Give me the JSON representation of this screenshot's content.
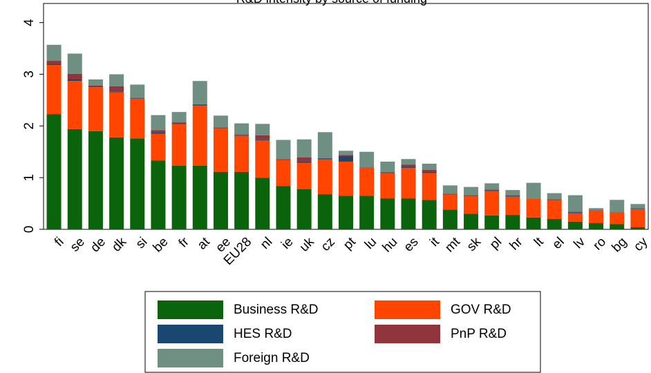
{
  "chart_data": {
    "type": "stacked-bar",
    "title": "R&D intensity by source of funding",
    "categories": [
      "fi",
      "se",
      "de",
      "dk",
      "si",
      "be",
      "fr",
      "at",
      "ee",
      "EU28",
      "nl",
      "ie",
      "uk",
      "cz",
      "pt",
      "lu",
      "hu",
      "es",
      "it",
      "mt",
      "sk",
      "pl",
      "hr",
      "lt",
      "el",
      "lv",
      "ro",
      "bg",
      "cy"
    ],
    "series": [
      {
        "name": "Business R&D",
        "color": "#0b640b",
        "values": [
          2.23,
          1.94,
          1.9,
          1.78,
          1.76,
          1.33,
          1.23,
          1.23,
          1.11,
          1.11,
          1.0,
          0.84,
          0.78,
          0.68,
          0.65,
          0.65,
          0.6,
          0.6,
          0.57,
          0.38,
          0.3,
          0.27,
          0.28,
          0.23,
          0.2,
          0.15,
          0.12,
          0.1,
          0.04
        ]
      },
      {
        "name": "GOV R&D",
        "color": "#ff4500",
        "values": [
          0.95,
          0.93,
          0.85,
          0.87,
          0.77,
          0.52,
          0.8,
          1.16,
          0.84,
          0.7,
          0.72,
          0.5,
          0.51,
          0.67,
          0.66,
          0.54,
          0.49,
          0.59,
          0.52,
          0.29,
          0.34,
          0.47,
          0.35,
          0.37,
          0.36,
          0.16,
          0.24,
          0.22,
          0.35
        ]
      },
      {
        "name": "HES R&D",
        "color": "#1a476f",
        "values": [
          0.02,
          0.03,
          0.01,
          0.02,
          0.01,
          0.03,
          0.01,
          0.01,
          0.01,
          0.01,
          0.02,
          0.01,
          0.03,
          0.01,
          0.1,
          0.0,
          0.01,
          0.02,
          0.02,
          0.01,
          0.01,
          0.02,
          0.01,
          0.0,
          0.01,
          0.02,
          0.0,
          0.0,
          0.01
        ]
      },
      {
        "name": "PnP R&D",
        "color": "#90353b",
        "values": [
          0.06,
          0.11,
          0.02,
          0.1,
          0.01,
          0.04,
          0.03,
          0.02,
          0.01,
          0.02,
          0.08,
          0.01,
          0.07,
          0.02,
          0.03,
          0.01,
          0.01,
          0.04,
          0.04,
          0.01,
          0.01,
          0.01,
          0.02,
          0.0,
          0.01,
          0.01,
          0.01,
          0.01,
          0.01
        ]
      },
      {
        "name": "Foreign R&D",
        "color": "#6f8f82",
        "values": [
          0.31,
          0.39,
          0.12,
          0.23,
          0.25,
          0.29,
          0.2,
          0.45,
          0.23,
          0.21,
          0.22,
          0.37,
          0.35,
          0.5,
          0.08,
          0.3,
          0.2,
          0.11,
          0.12,
          0.16,
          0.16,
          0.12,
          0.1,
          0.3,
          0.12,
          0.32,
          0.04,
          0.24,
          0.08
        ]
      }
    ],
    "ylim": [
      0,
      4.37
    ],
    "yticks": [
      0,
      1,
      2,
      3,
      4
    ]
  }
}
